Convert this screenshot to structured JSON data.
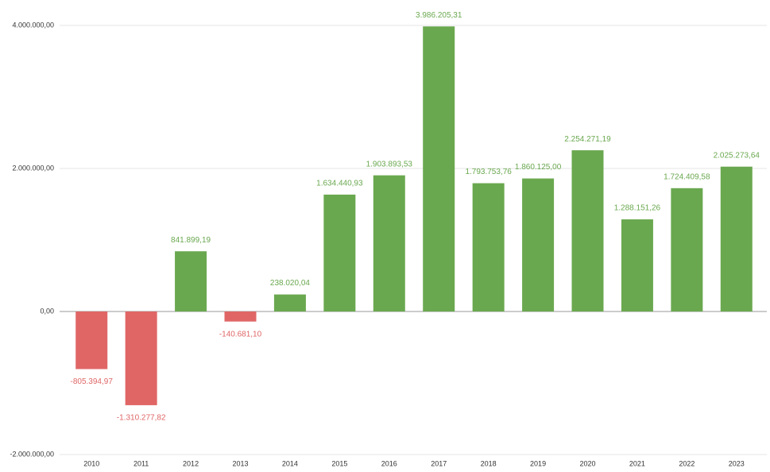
{
  "chart_data": {
    "type": "bar",
    "categories": [
      "2010",
      "2011",
      "2012",
      "2013",
      "2014",
      "2015",
      "2016",
      "2017",
      "2018",
      "2019",
      "2020",
      "2021",
      "2022",
      "2023"
    ],
    "values": [
      -805394.97,
      -1310277.82,
      841899.19,
      -140681.1,
      238020.04,
      1634440.93,
      1903893.53,
      3986205.31,
      1793753.76,
      1860125.0,
      2254271.19,
      1288151.26,
      1724409.58,
      2025273.64
    ],
    "value_labels": [
      "-805.394,97",
      "-1.310.277,82",
      "841.899,19",
      "-140.681,10",
      "238.020,04",
      "1.634.440,93",
      "1.903.893,53",
      "3.986.205,31",
      "1.793.753,76",
      "1.860.125,00",
      "2.254.271,19",
      "1.288.151,26",
      "1.724.409,58",
      "2.025.273,64"
    ],
    "color_positive": "#6aa84f",
    "color_negative": "#e06666",
    "ylim": [
      -2000000,
      4000000
    ],
    "yticks": [
      {
        "value": -2000000,
        "label": "-2.000.000,00"
      },
      {
        "value": 0,
        "label": "0,00"
      },
      {
        "value": 2000000,
        "label": "2.000.000,00"
      },
      {
        "value": 4000000,
        "label": "4.000.000,00"
      }
    ],
    "grid": true
  }
}
